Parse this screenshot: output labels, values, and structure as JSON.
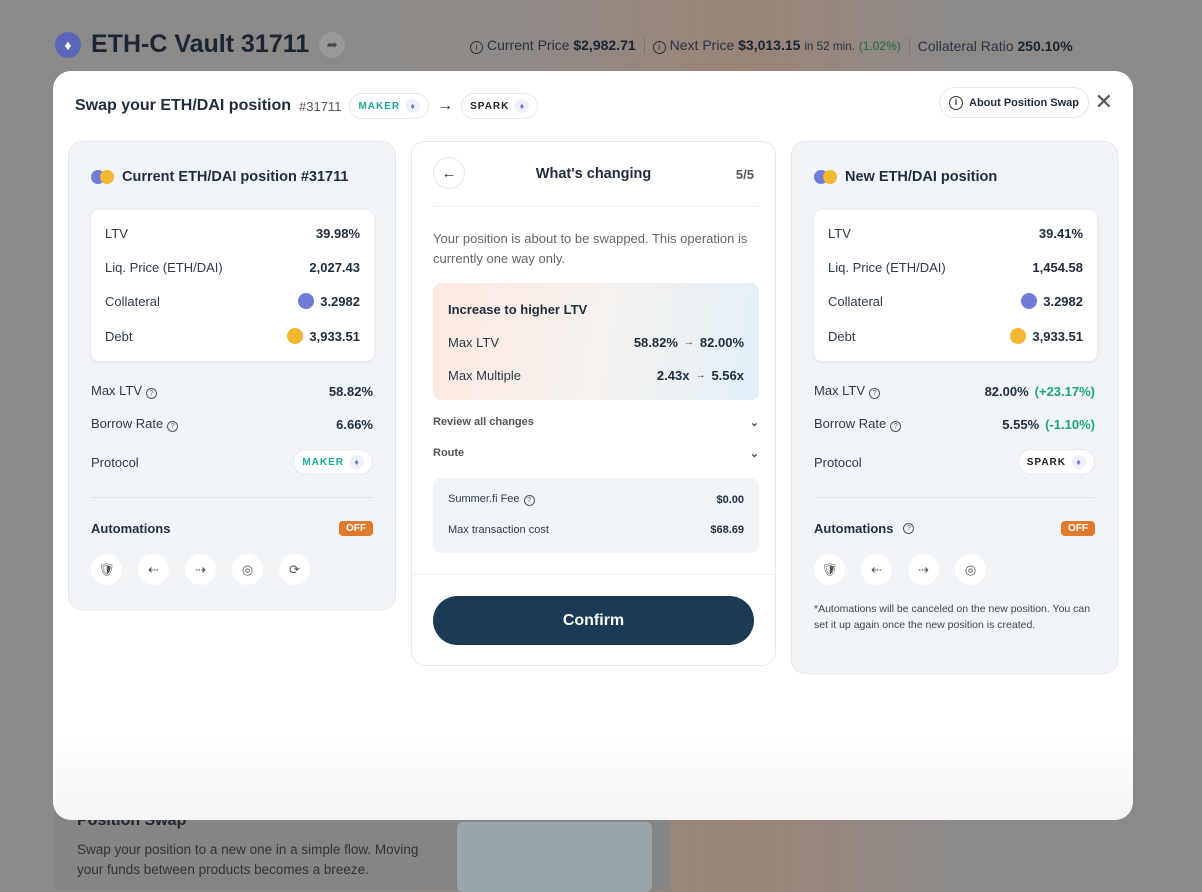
{
  "background": {
    "vault_title": "ETH-C Vault 31711",
    "current_price_label": "Current Price",
    "current_price": "$2,982.71",
    "next_price_label": "Next Price",
    "next_price": "$3,013.15",
    "next_price_time": "in 52 min.",
    "next_price_change": "(1.02%)",
    "collateral_ratio_label": "Collateral Ratio",
    "collateral_ratio": "250.10%",
    "card_title": "Position Swap",
    "card_text": "Swap your position to a new one in a simple flow. Moving your funds between products becomes a breeze."
  },
  "modal": {
    "title": "Swap your ETH/DAI position",
    "position_id": "#31711",
    "from_protocol": "MAKER",
    "to_protocol": "SPARK",
    "about_label": "About Position Swap"
  },
  "current": {
    "title": "Current ETH/DAI position #31711",
    "ltv_label": "LTV",
    "ltv": "39.98%",
    "liq_label": "Liq. Price (ETH/DAI)",
    "liq": "2,027.43",
    "collateral_label": "Collateral",
    "collateral": "3.2982",
    "debt_label": "Debt",
    "debt": "3,933.51",
    "max_ltv_label": "Max LTV",
    "max_ltv": "58.82%",
    "borrow_label": "Borrow Rate",
    "borrow": "6.66%",
    "protocol_label": "Protocol",
    "protocol": "MAKER",
    "automations_label": "Automations",
    "automations_status": "OFF"
  },
  "center": {
    "title": "What's changing",
    "step": "5/5",
    "description": "Your position is about to be swapped. This operation is currently one way only.",
    "change_title": "Increase to higher LTV",
    "max_ltv_label": "Max LTV",
    "max_ltv_from": "58.82%",
    "max_ltv_to": "82.00%",
    "max_mult_label": "Max Multiple",
    "max_mult_from": "2.43x",
    "max_mult_to": "5.56x",
    "review_label": "Review all changes",
    "route_label": "Route",
    "fee_label": "Summer.fi Fee",
    "fee": "$0.00",
    "tx_label": "Max transaction cost",
    "tx": "$68.69",
    "confirm_label": "Confirm"
  },
  "new": {
    "title": "New ETH/DAI position",
    "ltv_label": "LTV",
    "ltv": "39.41%",
    "liq_label": "Liq. Price (ETH/DAI)",
    "liq": "1,454.58",
    "collateral_label": "Collateral",
    "collateral": "3.2982",
    "debt_label": "Debt",
    "debt": "3,933.51",
    "max_ltv_label": "Max LTV",
    "max_ltv": "82.00%",
    "max_ltv_change": "(+23.17%)",
    "borrow_label": "Borrow Rate",
    "borrow": "5.55%",
    "borrow_change": "(-1.10%)",
    "protocol_label": "Protocol",
    "protocol": "SPARK",
    "automations_label": "Automations",
    "automations_status": "OFF",
    "note": "*Automations will be canceled on the new position. You can set it up again once the new position is created."
  },
  "colors": {
    "confirm": "#1b3a56",
    "off_badge": "#e07a2d",
    "positive": "#1aa57a",
    "maker": "#1aab9b"
  }
}
